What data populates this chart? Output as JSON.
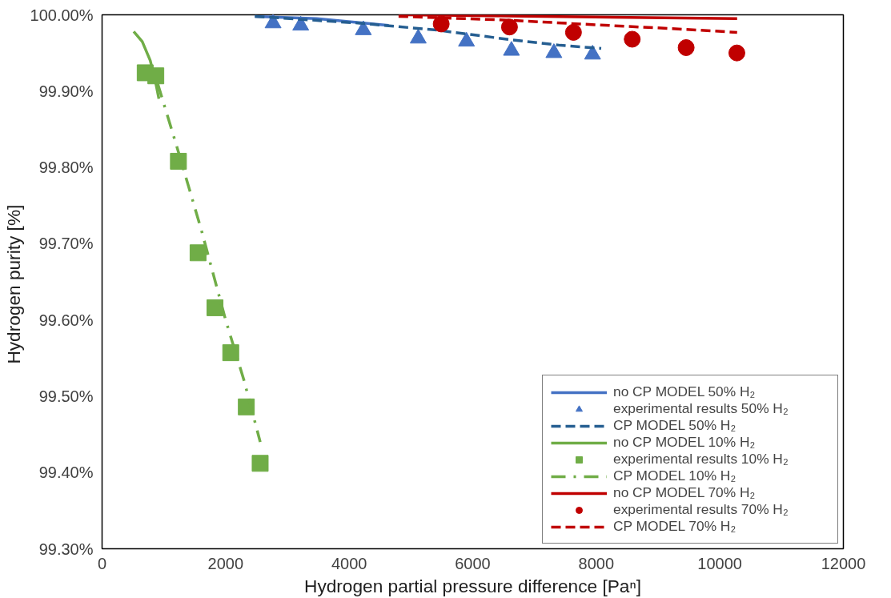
{
  "chart_data": {
    "type": "line",
    "xlabel": "Hydrogen partial pressure difference [Paⁿ]",
    "ylabel": "Hydrogen purity  [%]",
    "xlim": [
      0,
      12000
    ],
    "ylim": [
      99.3,
      100.0
    ],
    "xticks": [
      0,
      2000,
      4000,
      6000,
      8000,
      10000,
      12000
    ],
    "yticks": [
      {
        "value": 99.3,
        "label": "99.30%"
      },
      {
        "value": 99.4,
        "label": "99.40%"
      },
      {
        "value": 99.5,
        "label": "99.50%"
      },
      {
        "value": 99.6,
        "label": "99.60%"
      },
      {
        "value": 99.7,
        "label": "99.70%"
      },
      {
        "value": 99.8,
        "label": "99.80%"
      },
      {
        "value": 99.9,
        "label": "99.90%"
      },
      {
        "value": 100.0,
        "label": "100.00%"
      }
    ],
    "grid": false,
    "legend": "bottom right",
    "series": [
      {
        "name": "no CP MODEL 50% H₂",
        "line_style": "solid",
        "marker": "none",
        "color": "#4472c4",
        "x": [
          2474,
          3475,
          4640
        ],
        "values": [
          99.998,
          99.995,
          99.986
        ]
      },
      {
        "name": "experimental results 50% H₂",
        "type": "scatter",
        "marker": "triangle",
        "color": "#4472c4",
        "x": [
          2768,
          3216,
          4229,
          5118,
          5899,
          6627,
          7314,
          7940
        ],
        "values": [
          99.989,
          99.986,
          99.98,
          99.969,
          99.965,
          99.953,
          99.95,
          99.948
        ]
      },
      {
        "name": "CP MODEL 50% H₂",
        "line_style": "dashed",
        "marker": "none",
        "color": "#255e91",
        "x": [
          2474,
          4175,
          5415,
          6650,
          7420,
          8080
        ],
        "values": [
          99.998,
          99.989,
          99.98,
          99.967,
          99.96,
          99.956
        ]
      },
      {
        "name": "no CP MODEL 10% H₂",
        "line_style": "solid",
        "marker": "none",
        "color": "#70ad47",
        "x": [
          512,
          650,
          780,
          870,
          920
        ],
        "values": [
          99.978,
          99.965,
          99.94,
          99.91,
          99.89
        ]
      },
      {
        "name": "experimental results 10% H₂",
        "type": "scatter",
        "marker": "square",
        "color": "#70ad47",
        "x": [
          698,
          870,
          1236,
          1554,
          1828,
          2083,
          2335,
          2559
        ],
        "values": [
          99.924,
          99.92,
          99.808,
          99.688,
          99.616,
          99.557,
          99.486,
          99.412
        ]
      },
      {
        "name": "CP MODEL 10% H₂",
        "line_style": "dashdot",
        "marker": "none",
        "color": "#70ad47",
        "x": [
          900,
          1200,
          1600,
          2000,
          2300,
          2560
        ],
        "values": [
          99.91,
          99.83,
          99.72,
          99.6,
          99.52,
          99.44
        ]
      },
      {
        "name": "no CP MODEL 70% H₂",
        "line_style": "solid",
        "marker": "none",
        "color": "#c00000",
        "x": [
          4800,
          10280
        ],
        "values": [
          100.0,
          99.995
        ]
      },
      {
        "name": "experimental results 70% H₂",
        "type": "scatter",
        "marker": "circle",
        "color": "#c00000",
        "x": [
          5490,
          6595,
          7631,
          8582,
          9455,
          10276
        ],
        "values": [
          99.988,
          99.984,
          99.977,
          99.968,
          99.957,
          99.95
        ]
      },
      {
        "name": "CP MODEL 70% H₂",
        "line_style": "dashed",
        "marker": "none",
        "color": "#c00000",
        "x": [
          4800,
          6575,
          7730,
          9200,
          10280
        ],
        "values": [
          99.998,
          99.993,
          99.988,
          99.982,
          99.977
        ]
      }
    ]
  }
}
